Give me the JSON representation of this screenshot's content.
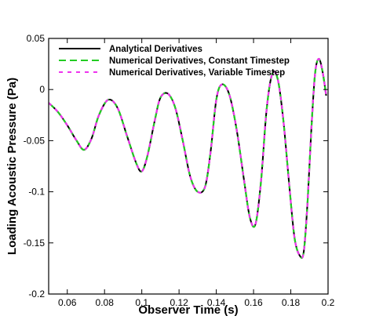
{
  "chart_data": {
    "type": "line",
    "title": "",
    "xlabel": "Observer Time (s)",
    "ylabel": "Loading Acoustic Pressure (Pa)",
    "xlim": [
      0.05,
      0.2
    ],
    "ylim": [
      -0.2,
      0.05
    ],
    "xticks": [
      0.06,
      0.08,
      0.1,
      0.12,
      0.14,
      0.16,
      0.18,
      0.2
    ],
    "xtick_labels": [
      "0.06",
      "0.08",
      "0.1",
      "0.12",
      "0.14",
      "0.16",
      "0.18",
      "0.2"
    ],
    "yticks": [
      0.05,
      0,
      -0.05,
      -0.1,
      -0.15,
      -0.2
    ],
    "ytick_labels": [
      "0.05",
      "0",
      "-0.05",
      "-0.1",
      "-0.15",
      "-0.2"
    ],
    "grid": false,
    "legend_position": "top",
    "series": [
      {
        "name": "Analytical Derivatives",
        "color": "#000000",
        "style": "solid",
        "x": [
          0.05,
          0.055,
          0.06,
          0.065,
          0.069,
          0.073,
          0.077,
          0.082,
          0.087,
          0.092,
          0.097,
          0.1,
          0.103,
          0.107,
          0.11,
          0.114,
          0.118,
          0.122,
          0.126,
          0.13,
          0.134,
          0.137,
          0.14,
          0.143,
          0.147,
          0.151,
          0.155,
          0.158,
          0.161,
          0.164,
          0.167,
          0.17,
          0.173,
          0.176,
          0.179,
          0.182,
          0.185,
          0.187,
          0.189,
          0.191,
          0.193,
          0.195,
          0.197,
          0.199
        ],
        "y": [
          -0.013,
          -0.022,
          -0.035,
          -0.05,
          -0.059,
          -0.048,
          -0.025,
          -0.01,
          -0.018,
          -0.045,
          -0.072,
          -0.08,
          -0.065,
          -0.03,
          -0.008,
          -0.004,
          -0.018,
          -0.05,
          -0.085,
          -0.1,
          -0.095,
          -0.06,
          -0.01,
          0.005,
          -0.005,
          -0.04,
          -0.09,
          -0.125,
          -0.132,
          -0.09,
          -0.02,
          0.015,
          0.01,
          -0.03,
          -0.09,
          -0.145,
          -0.163,
          -0.158,
          -0.11,
          -0.04,
          0.015,
          0.03,
          0.018,
          -0.006
        ]
      },
      {
        "name": "Numerical Derivatives, Constant Timestep",
        "color": "#22cc22",
        "style": "dashed",
        "x": [
          0.05,
          0.055,
          0.06,
          0.065,
          0.069,
          0.073,
          0.077,
          0.082,
          0.087,
          0.092,
          0.097,
          0.1,
          0.103,
          0.107,
          0.11,
          0.114,
          0.118,
          0.122,
          0.126,
          0.13,
          0.134,
          0.137,
          0.14,
          0.143,
          0.147,
          0.151,
          0.155,
          0.158,
          0.161,
          0.164,
          0.167,
          0.17,
          0.173,
          0.176,
          0.179,
          0.182,
          0.185,
          0.187,
          0.189,
          0.191,
          0.193,
          0.195,
          0.197,
          0.199
        ],
        "y": [
          -0.013,
          -0.022,
          -0.035,
          -0.05,
          -0.059,
          -0.048,
          -0.025,
          -0.01,
          -0.018,
          -0.045,
          -0.072,
          -0.08,
          -0.065,
          -0.03,
          -0.008,
          -0.004,
          -0.018,
          -0.05,
          -0.085,
          -0.1,
          -0.095,
          -0.06,
          -0.01,
          0.005,
          -0.005,
          -0.04,
          -0.09,
          -0.125,
          -0.132,
          -0.09,
          -0.02,
          0.015,
          0.01,
          -0.03,
          -0.09,
          -0.145,
          -0.163,
          -0.158,
          -0.11,
          -0.04,
          0.015,
          0.03,
          0.018,
          -0.006
        ]
      },
      {
        "name": "Numerical Derivatives, Variable Timestep",
        "color": "#ee33ee",
        "style": "dashed",
        "x": [
          0.05,
          0.055,
          0.06,
          0.065,
          0.069,
          0.073,
          0.077,
          0.082,
          0.087,
          0.092,
          0.097,
          0.1,
          0.103,
          0.107,
          0.11,
          0.114,
          0.118,
          0.122,
          0.126,
          0.13,
          0.134,
          0.137,
          0.14,
          0.143,
          0.147,
          0.151,
          0.155,
          0.158,
          0.161,
          0.164,
          0.167,
          0.17,
          0.173,
          0.176,
          0.179,
          0.182,
          0.185,
          0.187,
          0.189,
          0.191,
          0.193,
          0.195,
          0.197,
          0.199
        ],
        "y": [
          -0.013,
          -0.022,
          -0.035,
          -0.05,
          -0.059,
          -0.048,
          -0.025,
          -0.01,
          -0.018,
          -0.045,
          -0.072,
          -0.08,
          -0.065,
          -0.03,
          -0.008,
          -0.004,
          -0.018,
          -0.05,
          -0.085,
          -0.1,
          -0.095,
          -0.06,
          -0.01,
          0.005,
          -0.005,
          -0.04,
          -0.09,
          -0.125,
          -0.132,
          -0.09,
          -0.02,
          0.015,
          0.01,
          -0.03,
          -0.09,
          -0.145,
          -0.163,
          -0.158,
          -0.11,
          -0.04,
          0.015,
          0.03,
          0.018,
          -0.006
        ]
      }
    ]
  }
}
